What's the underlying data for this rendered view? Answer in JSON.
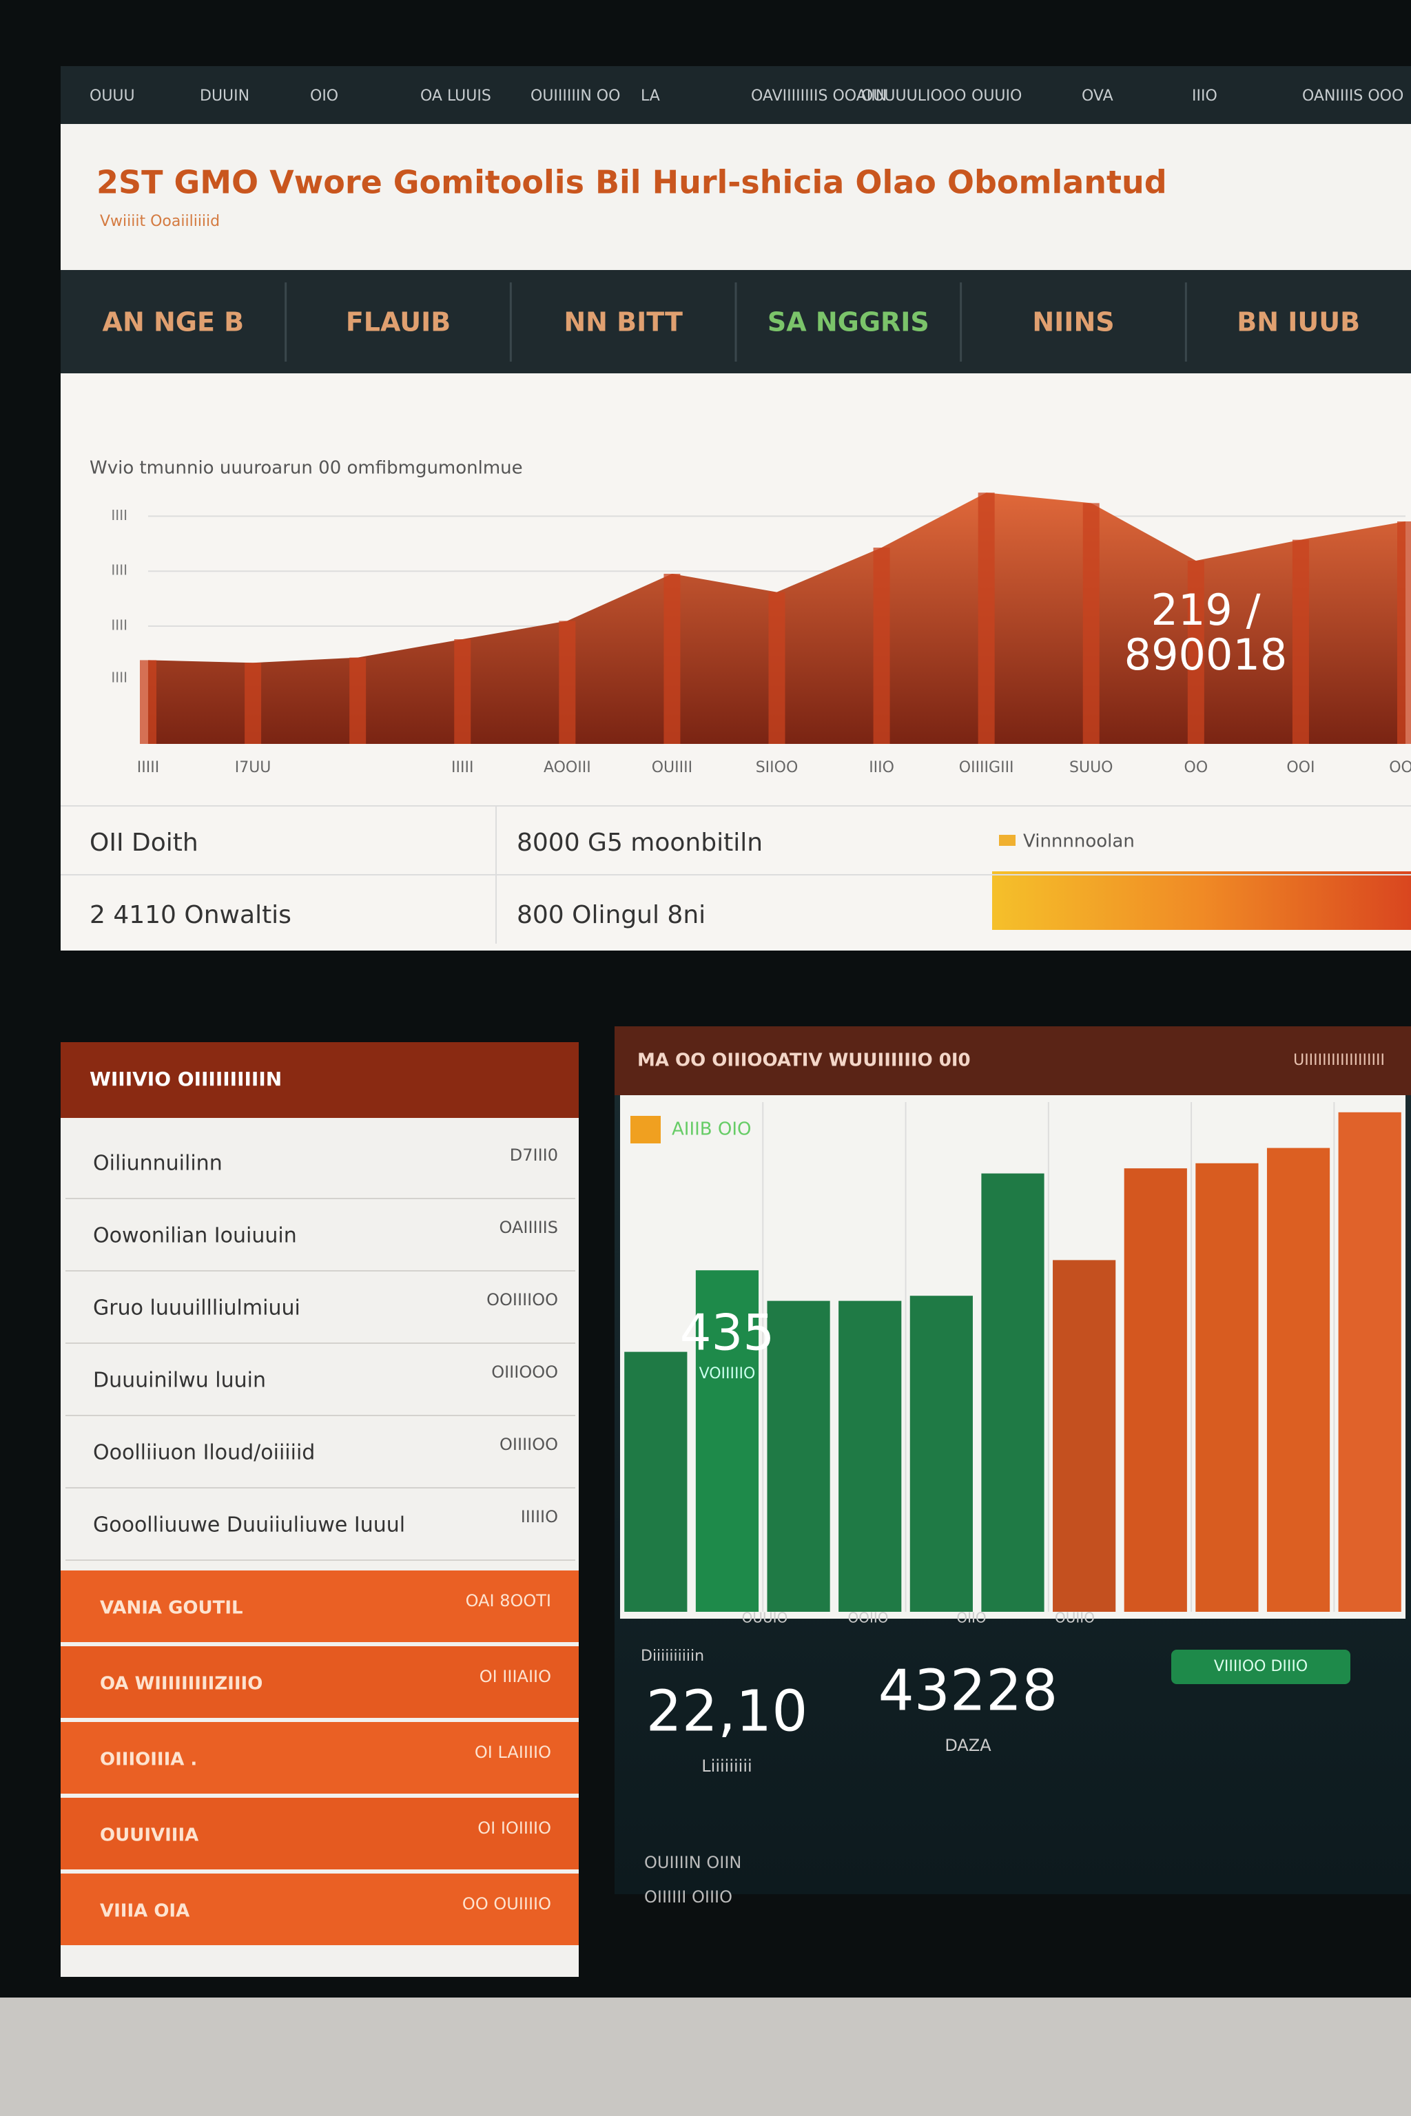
{
  "top_nav": [
    "OUUU",
    "DUUIN",
    "OIO",
    "OA LUUIS",
    "OUIIIIIIN OO",
    "LA",
    "OAVIIIIIIIIS OOAIIN",
    "OUUUULIOOO",
    "OUUIO",
    "OVA",
    "IIIO",
    "OANIIIIS OOO"
  ],
  "header": {
    "title": "2ST GMO Vwore Gomitoolis Bil Hurl-shicia Olao Obomlantud",
    "subtitle": "Vwiiiit Ooaiiliiiid"
  },
  "tabs": [
    "AN NGE B",
    "FLAUIB",
    "NN BITT",
    "SA NGGRIS",
    "NIINS",
    "BN IUUB"
  ],
  "chart_data": [
    {
      "type": "area",
      "title": "Wvio tmunnio uuuroarun 00 omfibmgumonlmue",
      "categories": [
        "IIIII",
        "I7UU",
        null,
        "IIIII",
        "AOOIII",
        "OUIIII",
        "SIIOO",
        "IIIO",
        "OIIIIGIII",
        "SUUO",
        "OO",
        "OOI",
        "OOII"
      ],
      "values": [
        32,
        31,
        33,
        40,
        47,
        65,
        58,
        75,
        96,
        92,
        70,
        78,
        85
      ],
      "color": "#c9431f",
      "ylim": [
        0,
        100
      ],
      "yticks": [
        {
          "value": 25,
          "label": "IIII"
        },
        {
          "value": 45,
          "label": "IIII"
        },
        {
          "value": 66,
          "label": "IIII"
        },
        {
          "value": 87,
          "label": "IIII"
        }
      ],
      "grid": true,
      "annotation": [
        "219 /",
        "890018"
      ]
    },
    {
      "type": "bar",
      "title": "MA OO OIIIOOATIV WUUIIIIIIO 0I0",
      "subtitle": "UIIIIIIIIIIIIIIIIII",
      "series": [
        {
          "name": "AIIIB OIO",
          "values": [
            51,
            67,
            61,
            61,
            62,
            86,
            69,
            87,
            88,
            91,
            98
          ],
          "colors": [
            "#1f7a45",
            "#1e8a4a",
            "#1f7a45",
            "#1f7a45",
            "#1f7a45",
            "#1f7a45",
            "#c4501f",
            "#d4571f",
            "#d85c20",
            "#dc5f22",
            "#e0622a"
          ]
        }
      ],
      "ylim": [
        0,
        100
      ],
      "grid": true,
      "callout": {
        "value": "435",
        "label": "VOIIIIIO"
      }
    }
  ],
  "summary_table": {
    "rows": [
      [
        "OII Doith",
        "8000 G5 moonbitiln"
      ],
      [
        "2 4110 Onwaltis",
        "800 Olingul 8ni"
      ]
    ],
    "legend": "Vinnnnoolan"
  },
  "list_panel": {
    "title": "WIIIVIO OIIIIIIIIIIN",
    "items": [
      {
        "label": "Oiliunnuilinn",
        "value": "D7III0"
      },
      {
        "label": "Oowonilian Iouiuuin",
        "value": "OAIIIIIS"
      },
      {
        "label": "Gruo luuuillliulmiuui",
        "value": "OOIIIIOO"
      },
      {
        "label": "Duuuinilwu luuin",
        "value": "OIIIOOO"
      },
      {
        "label": "Ooolliiuon Iloud/oiiiiid",
        "value": "OIIIIOO"
      },
      {
        "label": "Gooolliuuwe Duuiiuliuwe Iuuul",
        "value": "IIIIIO"
      }
    ],
    "rows": [
      {
        "label": "VANIA GOUTIL",
        "value": "OAI 8OOTI"
      },
      {
        "label": "OA WIIIIIIIIIZIIIO",
        "value": "OI IIIAIIO"
      },
      {
        "label": "OIIIOIIIA .",
        "value": "OI LAIIIIO"
      },
      {
        "label": "OUUIVIIIA",
        "value": "OI IOIIIIO"
      },
      {
        "label": "VIIIA OIA",
        "value": "OO OUIIIIO"
      }
    ]
  },
  "stats": {
    "axis_labels": [
      "OUUIO",
      "OOIIO",
      "OIIO",
      "OUIIO"
    ],
    "caption": "Diiiiiiiiiin",
    "kpis": [
      {
        "value": "22,10",
        "label": "Liiiiiiiii"
      },
      {
        "value": "43228",
        "label": "DAZA"
      }
    ],
    "tag": "VIIIIOO DIIIO",
    "footer": [
      "OUIIIIN OIIN",
      "OIIIIII OIIIO"
    ]
  }
}
